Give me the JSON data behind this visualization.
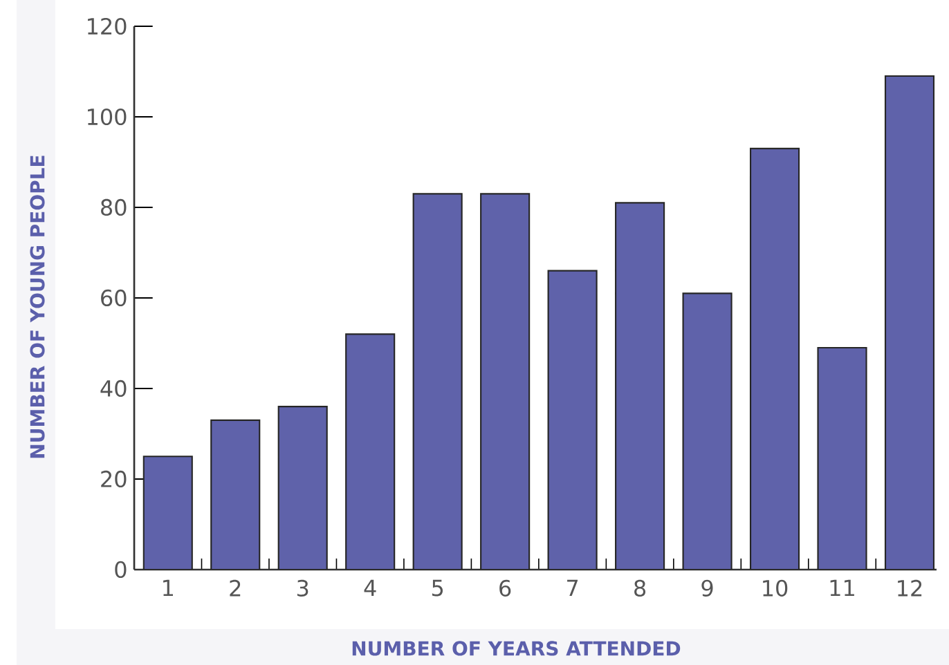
{
  "chart_data": {
    "type": "bar",
    "xlabel": "NUMBER OF YEARS ATTENDED",
    "ylabel": "NUMBER OF YOUNG PEOPLE",
    "categories": [
      "1",
      "2",
      "3",
      "4",
      "5",
      "6",
      "7",
      "8",
      "9",
      "10",
      "11",
      "12"
    ],
    "values": [
      25,
      33,
      36,
      52,
      83,
      83,
      66,
      81,
      61,
      93,
      49,
      109
    ],
    "color": "#5f62aa",
    "ylim": [
      0,
      120
    ],
    "yticks": [
      0,
      20,
      40,
      60,
      80,
      100,
      120
    ],
    "grid": false
  }
}
